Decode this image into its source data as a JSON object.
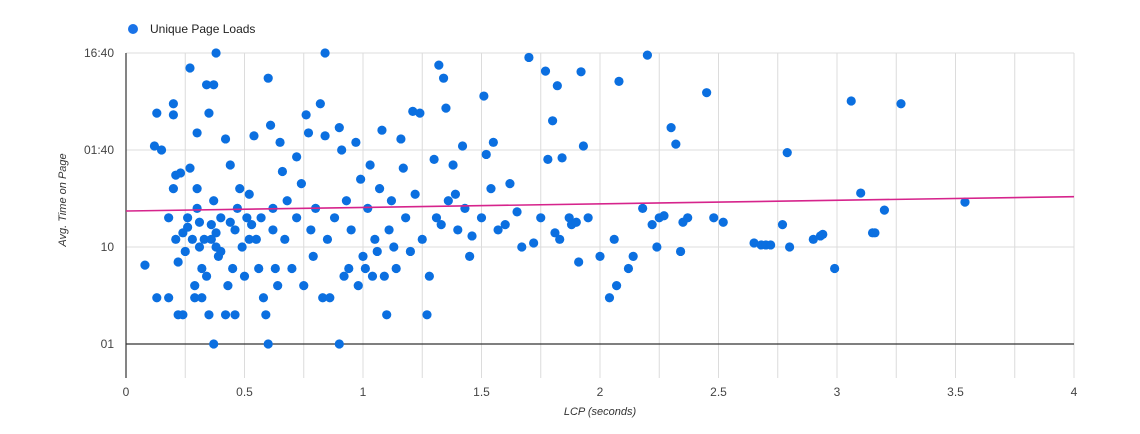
{
  "legend": {
    "label": "Unique Page Loads",
    "color": "#1a73e8"
  },
  "colors": {
    "points": "#0b6fe0",
    "trendline": "#d6248c",
    "grid": "#dcdcdc",
    "axis": "#333333"
  },
  "chart_data": {
    "type": "scatter",
    "title": "",
    "xlabel": "LCP (seconds)",
    "ylabel": "Avg. Time on Page",
    "xlim": [
      0,
      4
    ],
    "ylim_log10": [
      -0.35,
      3.0
    ],
    "y_scale": "log",
    "x_ticks": [
      "0",
      "0.5",
      "1",
      "1.5",
      "2",
      "2.5",
      "3",
      "3.5",
      "4"
    ],
    "y_ticks": [
      {
        "label": "01",
        "value": 1
      },
      {
        "label": "10",
        "value": 10
      },
      {
        "label": "01:40",
        "value": 100
      },
      {
        "label": "16:40",
        "value": 1000
      }
    ],
    "grid": true,
    "legend_position": "top-left",
    "series": [
      {
        "name": "Unique Page Loads",
        "points": [
          [
            0.08,
            6.5
          ],
          [
            0.13,
            3
          ],
          [
            0.13,
            240
          ],
          [
            0.12,
            110
          ],
          [
            0.15,
            100
          ],
          [
            0.18,
            3
          ],
          [
            0.18,
            20
          ],
          [
            0.2,
            40
          ],
          [
            0.2,
            300
          ],
          [
            0.2,
            230
          ],
          [
            0.21,
            12
          ],
          [
            0.21,
            55
          ],
          [
            0.22,
            7
          ],
          [
            0.22,
            2
          ],
          [
            0.23,
            58
          ],
          [
            0.24,
            2
          ],
          [
            0.24,
            14
          ],
          [
            0.25,
            9
          ],
          [
            0.26,
            20
          ],
          [
            0.26,
            16
          ],
          [
            0.27,
            700
          ],
          [
            0.27,
            65
          ],
          [
            0.28,
            12
          ],
          [
            0.29,
            4
          ],
          [
            0.29,
            3
          ],
          [
            0.3,
            150
          ],
          [
            0.3,
            40
          ],
          [
            0.3,
            25
          ],
          [
            0.31,
            18
          ],
          [
            0.31,
            10
          ],
          [
            0.32,
            3
          ],
          [
            0.32,
            6
          ],
          [
            0.33,
            12
          ],
          [
            0.34,
            470
          ],
          [
            0.34,
            5
          ],
          [
            0.35,
            2
          ],
          [
            0.35,
            240
          ],
          [
            0.36,
            17
          ],
          [
            0.36,
            12
          ],
          [
            0.37,
            470
          ],
          [
            0.37,
            30
          ],
          [
            0.37,
            1
          ],
          [
            0.38,
            1000
          ],
          [
            0.38,
            10
          ],
          [
            0.38,
            14
          ],
          [
            0.39,
            8
          ],
          [
            0.4,
            9
          ],
          [
            0.4,
            20
          ],
          [
            0.42,
            2
          ],
          [
            0.42,
            130
          ],
          [
            0.43,
            4
          ],
          [
            0.44,
            18
          ],
          [
            0.44,
            70
          ],
          [
            0.45,
            6
          ],
          [
            0.46,
            2
          ],
          [
            0.46,
            15
          ],
          [
            0.47,
            25
          ],
          [
            0.48,
            40
          ],
          [
            0.49,
            10
          ],
          [
            0.5,
            5
          ],
          [
            0.51,
            20
          ],
          [
            0.52,
            12
          ],
          [
            0.52,
            35
          ],
          [
            0.53,
            17
          ],
          [
            0.54,
            140
          ],
          [
            0.55,
            12
          ],
          [
            0.56,
            6
          ],
          [
            0.57,
            20
          ],
          [
            0.58,
            3
          ],
          [
            0.59,
            2
          ],
          [
            0.6,
            550
          ],
          [
            0.6,
            1
          ],
          [
            0.61,
            180
          ],
          [
            0.62,
            15
          ],
          [
            0.62,
            25
          ],
          [
            0.63,
            6
          ],
          [
            0.64,
            4
          ],
          [
            0.65,
            120
          ],
          [
            0.66,
            60
          ],
          [
            0.67,
            12
          ],
          [
            0.68,
            30
          ],
          [
            0.7,
            6
          ],
          [
            0.72,
            20
          ],
          [
            0.72,
            85
          ],
          [
            0.74,
            45
          ],
          [
            0.75,
            4
          ],
          [
            0.76,
            230
          ],
          [
            0.77,
            150
          ],
          [
            0.78,
            15
          ],
          [
            0.79,
            8
          ],
          [
            0.8,
            25
          ],
          [
            0.82,
            300
          ],
          [
            0.83,
            3
          ],
          [
            0.84,
            1000
          ],
          [
            0.84,
            140
          ],
          [
            0.85,
            12
          ],
          [
            0.86,
            3
          ],
          [
            0.88,
            20
          ],
          [
            0.9,
            1
          ],
          [
            0.9,
            170
          ],
          [
            0.91,
            100
          ],
          [
            0.92,
            5
          ],
          [
            0.93,
            30
          ],
          [
            0.94,
            6
          ],
          [
            0.95,
            15
          ],
          [
            0.97,
            120
          ],
          [
            0.98,
            4
          ],
          [
            0.99,
            50
          ],
          [
            1.0,
            8
          ],
          [
            1.01,
            6
          ],
          [
            1.02,
            25
          ],
          [
            1.03,
            70
          ],
          [
            1.04,
            5
          ],
          [
            1.05,
            12
          ],
          [
            1.06,
            9
          ],
          [
            1.07,
            40
          ],
          [
            1.08,
            160
          ],
          [
            1.09,
            5
          ],
          [
            1.1,
            2
          ],
          [
            1.11,
            15
          ],
          [
            1.12,
            30
          ],
          [
            1.13,
            10
          ],
          [
            1.14,
            6
          ],
          [
            1.16,
            130
          ],
          [
            1.17,
            65
          ],
          [
            1.18,
            20
          ],
          [
            1.2,
            9
          ],
          [
            1.21,
            250
          ],
          [
            1.22,
            35
          ],
          [
            1.24,
            240
          ],
          [
            1.25,
            12
          ],
          [
            1.27,
            2
          ],
          [
            1.28,
            5
          ],
          [
            1.3,
            80
          ],
          [
            1.31,
            20
          ],
          [
            1.32,
            750
          ],
          [
            1.33,
            17
          ],
          [
            1.34,
            550
          ],
          [
            1.35,
            270
          ],
          [
            1.36,
            30
          ],
          [
            1.38,
            70
          ],
          [
            1.39,
            35
          ],
          [
            1.4,
            15
          ],
          [
            1.42,
            110
          ],
          [
            1.43,
            25
          ],
          [
            1.45,
            8
          ],
          [
            1.46,
            13
          ],
          [
            1.5,
            20
          ],
          [
            1.51,
            360
          ],
          [
            1.52,
            90
          ],
          [
            1.54,
            40
          ],
          [
            1.55,
            120
          ],
          [
            1.57,
            15
          ],
          [
            1.6,
            17
          ],
          [
            1.62,
            45
          ],
          [
            1.65,
            23
          ],
          [
            1.67,
            10
          ],
          [
            1.7,
            900
          ],
          [
            1.72,
            11
          ],
          [
            1.75,
            20
          ],
          [
            1.77,
            650
          ],
          [
            1.78,
            80
          ],
          [
            1.8,
            200
          ],
          [
            1.81,
            14
          ],
          [
            1.82,
            460
          ],
          [
            1.83,
            12
          ],
          [
            1.84,
            83
          ],
          [
            1.87,
            20
          ],
          [
            1.88,
            17
          ],
          [
            1.9,
            18
          ],
          [
            1.91,
            7
          ],
          [
            1.92,
            640
          ],
          [
            1.93,
            110
          ],
          [
            1.95,
            20
          ],
          [
            2.0,
            8
          ],
          [
            2.04,
            3
          ],
          [
            2.06,
            12
          ],
          [
            2.07,
            4
          ],
          [
            2.08,
            510
          ],
          [
            2.12,
            6
          ],
          [
            2.14,
            8
          ],
          [
            2.18,
            25
          ],
          [
            2.2,
            950
          ],
          [
            2.22,
            17
          ],
          [
            2.24,
            10
          ],
          [
            2.25,
            20
          ],
          [
            2.27,
            21
          ],
          [
            2.3,
            170
          ],
          [
            2.32,
            115
          ],
          [
            2.34,
            9
          ],
          [
            2.35,
            18
          ],
          [
            2.37,
            20
          ],
          [
            2.45,
            390
          ],
          [
            2.48,
            20
          ],
          [
            2.52,
            18
          ],
          [
            2.65,
            11
          ],
          [
            2.68,
            10.5
          ],
          [
            2.7,
            10.5
          ],
          [
            2.72,
            10.5
          ],
          [
            2.77,
            17
          ],
          [
            2.79,
            94
          ],
          [
            2.8,
            10
          ],
          [
            2.9,
            12
          ],
          [
            2.93,
            13
          ],
          [
            2.94,
            13.5
          ],
          [
            2.99,
            6
          ],
          [
            3.06,
            320
          ],
          [
            3.1,
            36
          ],
          [
            3.15,
            14
          ],
          [
            3.16,
            14
          ],
          [
            3.2,
            24
          ],
          [
            3.27,
            300
          ],
          [
            3.54,
            29
          ]
        ]
      }
    ],
    "trendline": {
      "from": [
        0,
        23.5
      ],
      "to": [
        4,
        33
      ]
    }
  }
}
